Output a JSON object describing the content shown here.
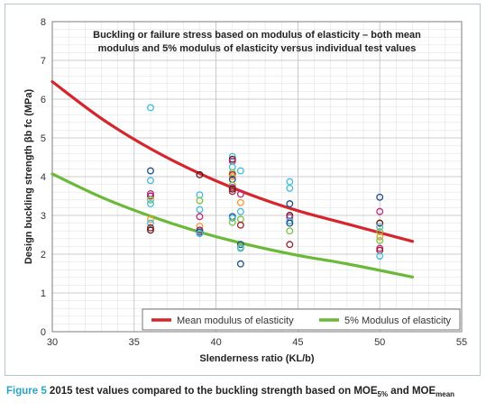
{
  "chart_data": {
    "type": "scatter",
    "title_lines": [
      "Buckling or failure stress based on modulus of elasticity – both mean",
      "modulus and 5% modulus of elasticity versus individual test values"
    ],
    "xlabel": "Slenderness ratio (KL/b)",
    "ylabel": "Design buckling strength βb fc (MPa)",
    "xlim": [
      30,
      55
    ],
    "ylim": [
      0,
      8
    ],
    "xticks": [
      30,
      35,
      40,
      45,
      50,
      55
    ],
    "yticks": [
      0,
      1,
      2,
      3,
      4,
      5,
      6,
      7,
      8
    ],
    "grid": "minor and major",
    "legend_position": "bottom",
    "legend": [
      {
        "label": "Mean modulus of elasticity",
        "color": "#d4262c"
      },
      {
        "label": "5% Modulus of elasticity",
        "color": "#6ab938"
      }
    ],
    "series": [
      {
        "name": "Mean modulus of elasticity",
        "type": "line",
        "color": "#d4262c",
        "x": [
          30,
          33,
          36,
          39,
          42,
          45,
          48,
          52
        ],
        "y": [
          6.45,
          5.5,
          4.72,
          4.08,
          3.55,
          3.12,
          2.78,
          2.33
        ]
      },
      {
        "name": "5% Modulus of elasticity",
        "type": "line",
        "color": "#6ab938",
        "x": [
          30,
          33,
          36,
          39,
          42,
          45,
          48,
          52
        ],
        "y": [
          4.07,
          3.47,
          2.98,
          2.57,
          2.24,
          1.97,
          1.75,
          1.41
        ]
      },
      {
        "type": "scatter",
        "marker": "open-circle",
        "x": [
          36,
          36,
          36,
          36,
          36,
          36,
          36,
          36,
          36,
          36,
          36,
          39,
          39,
          39,
          39,
          39,
          39,
          39,
          39,
          39,
          41,
          41,
          41,
          41,
          41,
          41,
          41,
          41,
          41,
          41,
          41,
          41,
          41,
          41,
          41,
          41.5,
          41.5,
          41.5,
          41.5,
          41.5,
          41.5,
          41.5,
          41.5,
          41.5,
          41.5,
          44.5,
          44.5,
          44.5,
          44.5,
          44.5,
          44.5,
          44.5,
          44.5,
          44.5,
          50,
          50,
          50,
          50,
          50,
          50,
          50,
          50,
          50,
          50
        ],
        "y": [
          5.78,
          4.15,
          3.9,
          3.56,
          3.5,
          3.4,
          3.3,
          2.9,
          2.8,
          2.68,
          2.62,
          4.05,
          3.53,
          3.38,
          3.15,
          2.97,
          2.72,
          2.62,
          2.57,
          2.53,
          4.52,
          4.45,
          4.4,
          4.25,
          4.1,
          4.05,
          4.0,
          3.93,
          3.78,
          3.72,
          3.68,
          3.62,
          2.97,
          2.93,
          2.82,
          4.15,
          3.55,
          3.33,
          3.1,
          2.9,
          2.75,
          2.25,
          2.18,
          2.15,
          1.75,
          3.87,
          3.7,
          3.3,
          3.0,
          2.95,
          2.86,
          2.8,
          2.6,
          2.25,
          3.47,
          3.1,
          2.8,
          2.7,
          2.58,
          2.45,
          2.35,
          2.15,
          2.1,
          1.95
        ],
        "colors": [
          "#3fbde0",
          "#1f4e8c",
          "#3fbde0",
          "#c0287a",
          "#a31d5a",
          "#7cc243",
          "#3fbde0",
          "#f49a2a",
          "#3fbde0",
          "#a31d2a",
          "#5a1a1a",
          "#5a1a1a",
          "#3fbde0",
          "#7cc243",
          "#3fbde0",
          "#c0287a",
          "#f49a2a",
          "#a31d5a",
          "#1f4e8c",
          "#3fbde0",
          "#3fbde0",
          "#5a1a1a",
          "#c0287a",
          "#3fbde0",
          "#7cc243",
          "#a31d2a",
          "#f49a2a",
          "#1f4e8c",
          "#7cc243",
          "#c0287a",
          "#5a1a1a",
          "#a31d2a",
          "#1f4e8c",
          "#3fbde0",
          "#7cc243",
          "#3fbde0",
          "#c0287a",
          "#f49a2a",
          "#3fbde0",
          "#7cc243",
          "#a31d2a",
          "#1f4e8c",
          "#7cc243",
          "#3fbde0",
          "#1f4e8c",
          "#3fbde0",
          "#3fbde0",
          "#1f4e8c",
          "#5a1a1a",
          "#c0287a",
          "#3fbde0",
          "#1f4e8c",
          "#7cc243",
          "#a31d2a",
          "#1f4e8c",
          "#c0287a",
          "#5a1a1a",
          "#3fbde0",
          "#7cc243",
          "#f49a2a",
          "#7cc243",
          "#c0287a",
          "#a31d2a",
          "#3fbde0"
        ]
      }
    ]
  },
  "caption": {
    "figure_label": "Figure 5",
    "text_before": " 2015 test values compared to the buckling strength based on MOE",
    "sub1": "5%",
    "text_middle": " and MOE",
    "sub2": "mean"
  }
}
